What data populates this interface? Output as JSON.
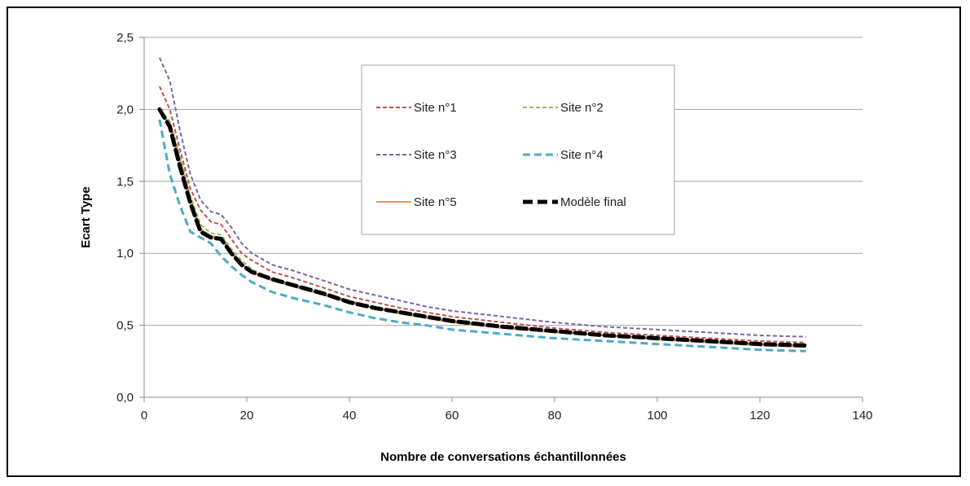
{
  "chart_data": {
    "type": "line",
    "xlabel": "Nombre de conversations échantillonnées",
    "ylabel": "Ecart Type",
    "xlim": [
      0,
      140
    ],
    "ylim": [
      0,
      2.5
    ],
    "xticks": [
      0,
      20,
      40,
      60,
      80,
      100,
      120,
      140
    ],
    "yticks": [
      0,
      0.5,
      1.0,
      1.5,
      2.0,
      2.5
    ],
    "x_tick_labels": [
      "0",
      "20",
      "40",
      "60",
      "80",
      "100",
      "120",
      "140"
    ],
    "y_tick_labels": [
      "0,0",
      "0,5",
      "1,0",
      "1,5",
      "2,0",
      "2,5"
    ],
    "grid": "horizontal",
    "legend_position": "top-center",
    "x": [
      3,
      5,
      7,
      9,
      11,
      13,
      15,
      17,
      19,
      21,
      25,
      29,
      35,
      40,
      45,
      50,
      55,
      60,
      70,
      80,
      90,
      100,
      110,
      120,
      129
    ],
    "series": [
      {
        "name": "Site n°1",
        "color": "#c0504d",
        "dash": "short",
        "values": [
          2.16,
          2.0,
          1.72,
          1.45,
          1.3,
          1.22,
          1.2,
          1.1,
          1.0,
          0.95,
          0.87,
          0.83,
          0.76,
          0.7,
          0.66,
          0.62,
          0.59,
          0.56,
          0.52,
          0.48,
          0.45,
          0.43,
          0.41,
          0.39,
          0.38
        ]
      },
      {
        "name": "Site n°2",
        "color": "#9bbb59",
        "dash": "short",
        "values": [
          2.0,
          1.92,
          1.68,
          1.4,
          1.2,
          1.14,
          1.13,
          1.03,
          0.95,
          0.89,
          0.82,
          0.78,
          0.72,
          0.67,
          0.63,
          0.59,
          0.56,
          0.53,
          0.49,
          0.46,
          0.43,
          0.41,
          0.39,
          0.37,
          0.36
        ]
      },
      {
        "name": "Site n°3",
        "color": "#8064a2",
        "dash": "short",
        "values": [
          2.36,
          2.2,
          1.85,
          1.55,
          1.37,
          1.29,
          1.27,
          1.18,
          1.07,
          1.0,
          0.92,
          0.88,
          0.81,
          0.75,
          0.71,
          0.67,
          0.63,
          0.6,
          0.56,
          0.52,
          0.49,
          0.47,
          0.45,
          0.43,
          0.42
        ]
      },
      {
        "name": "Site n°4",
        "color": "#4bacc6",
        "dash": "long",
        "values": [
          1.93,
          1.55,
          1.33,
          1.15,
          1.11,
          1.07,
          0.98,
          0.91,
          0.85,
          0.8,
          0.73,
          0.69,
          0.64,
          0.59,
          0.55,
          0.52,
          0.5,
          0.47,
          0.44,
          0.41,
          0.39,
          0.37,
          0.35,
          0.33,
          0.32
        ]
      },
      {
        "name": "Site n°5",
        "color": "#d99a5b",
        "dash": "solid",
        "values": [
          2.0,
          1.9,
          1.65,
          1.38,
          1.17,
          1.12,
          1.11,
          1.01,
          0.93,
          0.87,
          0.81,
          0.77,
          0.71,
          0.66,
          0.62,
          0.58,
          0.55,
          0.52,
          0.48,
          0.45,
          0.43,
          0.4,
          0.38,
          0.36,
          0.35
        ]
      },
      {
        "name": "Modèle final",
        "color": "#000000",
        "dash": "bold",
        "values": [
          2.0,
          1.88,
          1.6,
          1.35,
          1.15,
          1.11,
          1.1,
          1.0,
          0.92,
          0.87,
          0.82,
          0.78,
          0.72,
          0.66,
          0.62,
          0.59,
          0.56,
          0.53,
          0.49,
          0.46,
          0.43,
          0.41,
          0.39,
          0.37,
          0.36
        ]
      }
    ]
  }
}
